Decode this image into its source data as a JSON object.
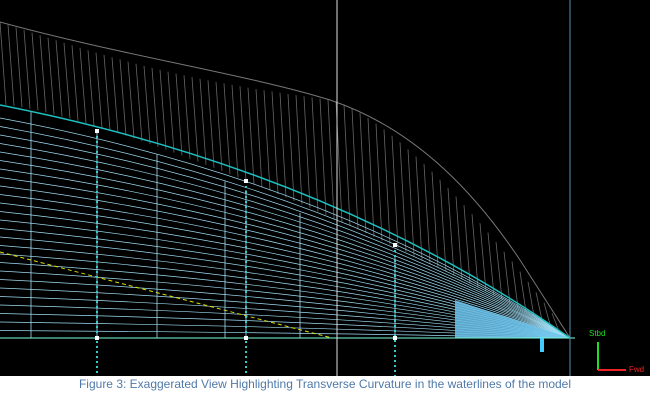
{
  "axis_icon": {
    "up_label": "Stbd",
    "right_label": "Fwd"
  },
  "caption": "Figure 3: Exaggerated View Highlighting Transverse Curvature in the waterlines of the model"
}
